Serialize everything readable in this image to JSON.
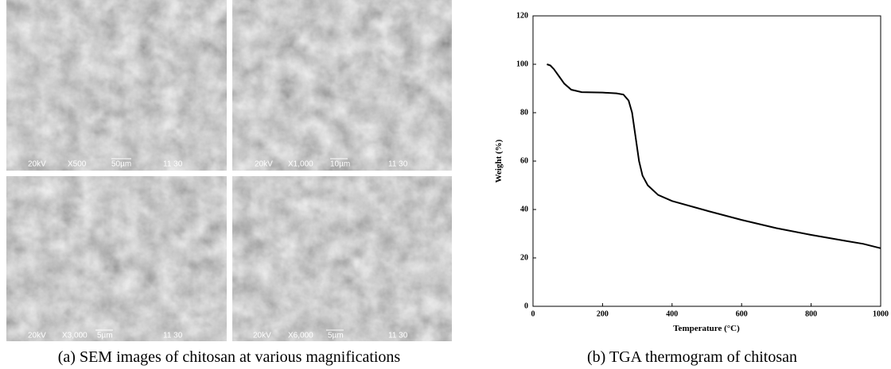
{
  "sem_panels": [
    {
      "voltage": "20kV",
      "magnification": "X500",
      "scale": "50µm",
      "code": "11 30"
    },
    {
      "voltage": "20kV",
      "magnification": "X1,000",
      "scale": "10µm",
      "code": "11 30"
    },
    {
      "voltage": "20kV",
      "magnification": "X3,000",
      "scale": "5µm",
      "code": "11 30"
    },
    {
      "voltage": "20kV",
      "magnification": "X6,000",
      "scale": "5µm",
      "code": "11 30"
    }
  ],
  "captions": {
    "a": "(a) SEM images of chitosan at various magnifications",
    "b": "(b) TGA thermogram of chitosan"
  },
  "chart_data": {
    "type": "line",
    "x_label": "Temperature (°C)",
    "y_label": "Weight  (%)",
    "x": [
      40,
      50,
      60,
      75,
      90,
      110,
      140,
      200,
      240,
      260,
      275,
      285,
      295,
      305,
      315,
      330,
      360,
      400,
      500,
      600,
      700,
      800,
      900,
      950,
      1000
    ],
    "values": [
      100,
      99.5,
      98,
      95,
      92,
      89.5,
      88.5,
      88.3,
      88,
      87.5,
      85,
      80,
      70,
      60,
      54,
      50,
      46,
      43.5,
      39.5,
      35.7,
      32.3,
      29.5,
      27,
      25.8,
      24
    ],
    "color": "#000000",
    "xlim": [
      0,
      1000
    ],
    "xticks": [
      0,
      200,
      400,
      600,
      800,
      1000
    ],
    "ylim": [
      0,
      120
    ],
    "yticks": [
      0,
      20,
      40,
      60,
      80,
      100,
      120
    ]
  }
}
